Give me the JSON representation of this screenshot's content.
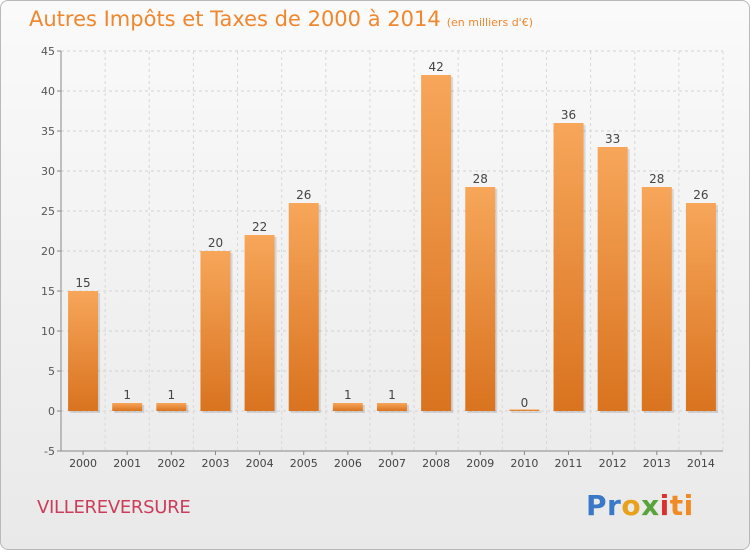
{
  "header": {
    "title": "Autres Impôts et Taxes de 2000 à 2014",
    "subtitle": "(en milliers d'€)"
  },
  "footer": {
    "commune": "VILLEREVERSURE",
    "logo_parts": [
      "Pr",
      "o",
      "x",
      "i",
      "ti"
    ]
  },
  "colors": {
    "bar_light": "#f7a65a",
    "bar_dark": "#d9731f",
    "title": "#f0872d",
    "commune": "#cc3d5a"
  },
  "chart_data": {
    "type": "bar",
    "title": "Autres Impôts et Taxes de 2000 à 2014",
    "subtitle": "(en milliers d'€)",
    "categories": [
      "2000",
      "2001",
      "2002",
      "2003",
      "2004",
      "2005",
      "2006",
      "2007",
      "2008",
      "2009",
      "2010",
      "2011",
      "2012",
      "2013",
      "2014"
    ],
    "values": [
      15,
      1,
      1,
      20,
      22,
      26,
      1,
      1,
      42,
      28,
      0,
      36,
      33,
      28,
      26
    ],
    "ylim": [
      -5,
      45
    ],
    "yticks": [
      -5,
      0,
      5,
      10,
      15,
      20,
      25,
      30,
      35,
      40,
      45
    ],
    "grid": true,
    "legend": "none"
  }
}
